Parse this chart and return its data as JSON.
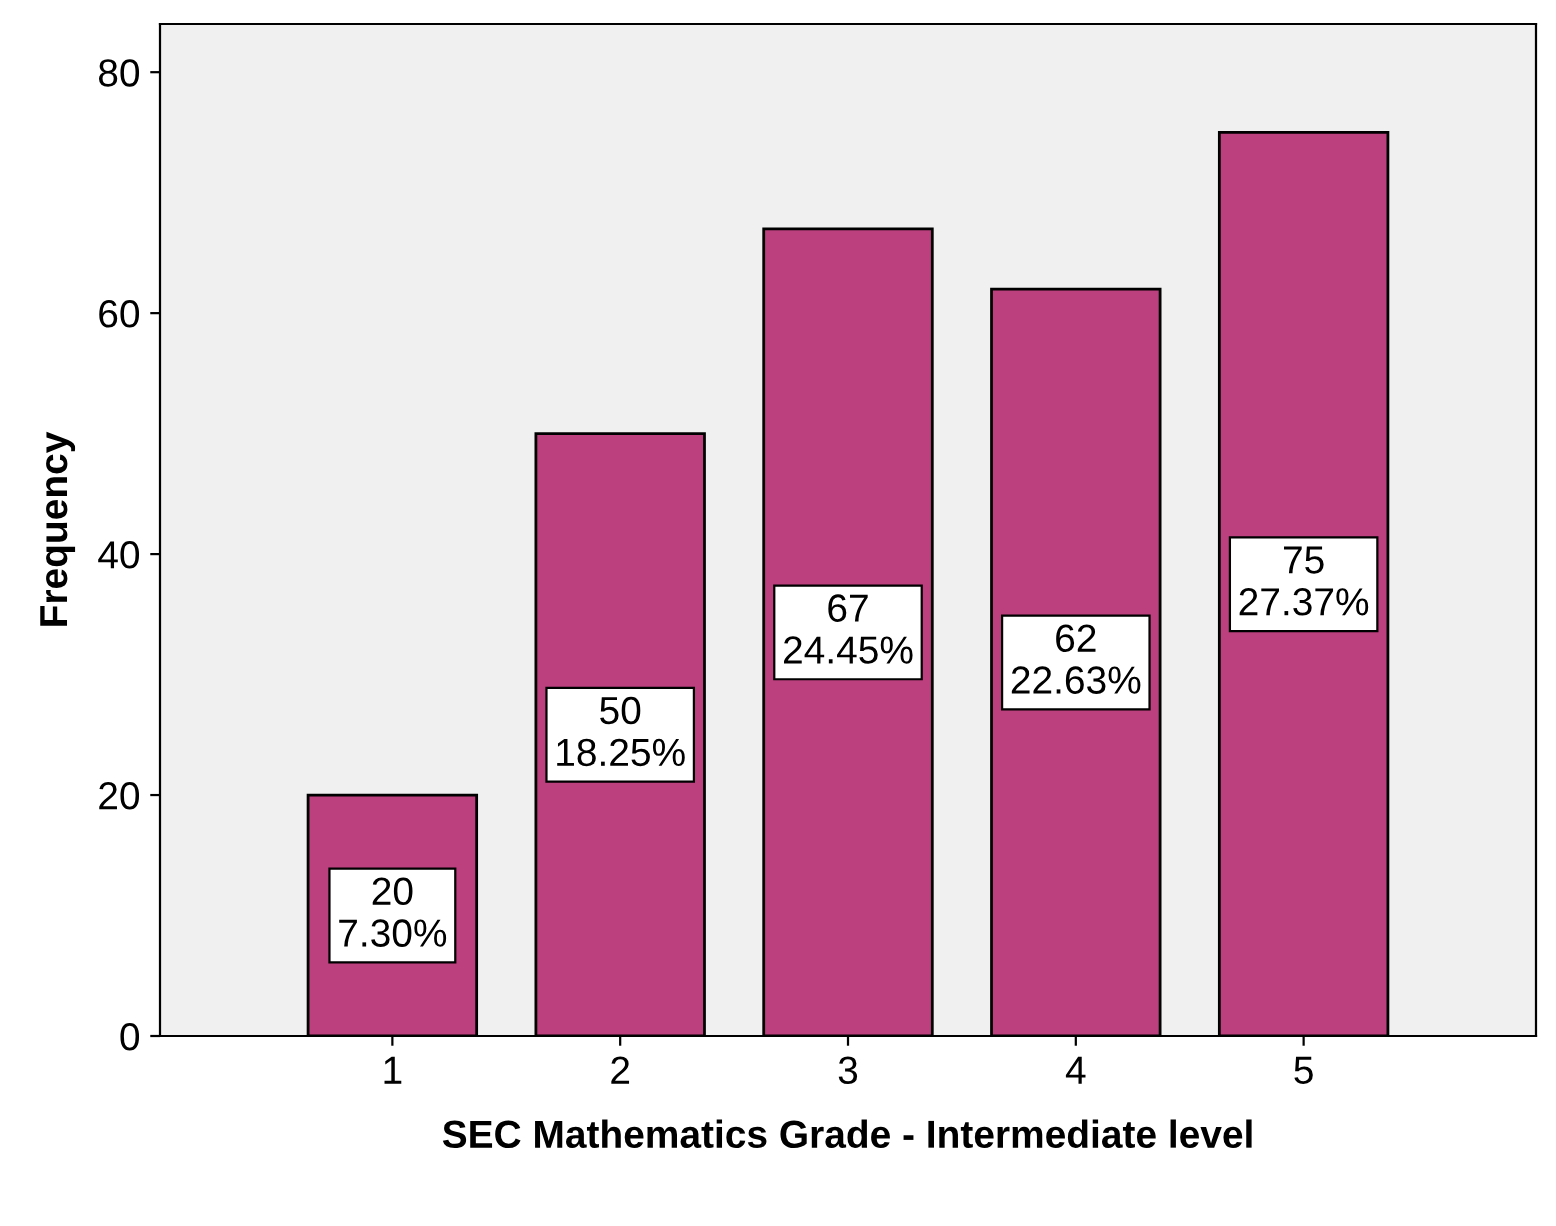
{
  "chart_data": {
    "type": "bar",
    "xlabel": "SEC Mathematics Grade - Intermediate level",
    "ylabel": "Frequency",
    "categories": [
      "1",
      "2",
      "3",
      "4",
      "5"
    ],
    "values": [
      20,
      50,
      67,
      62,
      75
    ],
    "value_labels": [
      "20\n7.30%",
      "50\n18.25%",
      "67\n24.45%",
      "62\n22.63%",
      "75\n27.37%"
    ],
    "color": "#bc3f7e",
    "ylim": [
      0,
      84
    ],
    "yticks": [
      0,
      20,
      40,
      60,
      80
    ],
    "grid": false,
    "legend": false
  }
}
